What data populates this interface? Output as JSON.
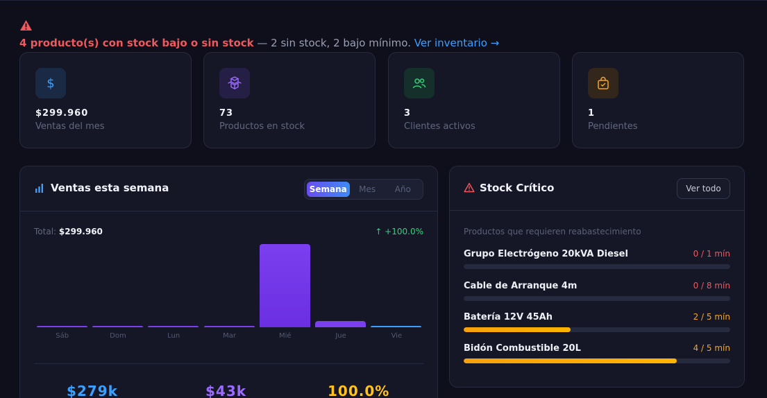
{
  "alert": {
    "strong": "4 producto(s) con stock bajo o sin stock",
    "detail": " — 2 sin stock, 2 bajo mínimo. ",
    "link": "Ver inventario →"
  },
  "stats": [
    {
      "value": "$299.960",
      "label": "Ventas del mes",
      "icon": "dollar-icon",
      "color": "#3aa0ff",
      "bg": "#1b2a44"
    },
    {
      "value": "73",
      "label": "Productos en stock",
      "icon": "cubes-icon",
      "color": "#9b6bff",
      "bg": "#251f45"
    },
    {
      "value": "3",
      "label": "Clientes activos",
      "icon": "users-icon",
      "color": "#34d17a",
      "bg": "#15302a"
    },
    {
      "value": "1",
      "label": "Pendientes",
      "icon": "shopping-bag-icon",
      "color": "#f5a623",
      "bg": "#33261a"
    }
  ],
  "sales": {
    "title": "Ventas esta semana",
    "tabs": [
      "Semana",
      "Mes",
      "Año"
    ],
    "active_tab": "Semana",
    "total_label": "Total: ",
    "total_value": "$299.960",
    "change": "↑ +100.0%",
    "summary": [
      {
        "value": "$279k",
        "color": "#3aa0ff"
      },
      {
        "value": "$43k",
        "color": "#9b6bff"
      },
      {
        "value": "100.0%",
        "color": "#ffc21a"
      }
    ]
  },
  "chart_data": {
    "type": "bar",
    "categories": [
      "Sáb",
      "Dom",
      "Lun",
      "Mar",
      "Mié",
      "Jue",
      "Vie"
    ],
    "values": [
      0,
      0,
      0,
      0,
      279000,
      20960,
      0
    ],
    "title": "Ventas esta semana",
    "ylim": [
      0,
      279000
    ],
    "grid": false
  },
  "stock": {
    "title": "Stock Crítico",
    "button": "Ver todo",
    "subtitle": "Productos que requieren reabastecimiento",
    "items": [
      {
        "name": "Grupo Electrógeno 20kVA Diesel",
        "qty": "0 / 1 mín",
        "level": 0,
        "color": "#f0585c"
      },
      {
        "name": "Cable de Arranque 4m",
        "qty": "0 / 8 mín",
        "level": 0,
        "color": "#f0585c"
      },
      {
        "name": "Batería 12V 45Ah",
        "qty": "2 / 5 mín",
        "level": 0.4,
        "color": "#f5a623"
      },
      {
        "name": "Bidón Combustible 20L",
        "qty": "4 / 5 mín",
        "level": 0.8,
        "color": "#f5a623"
      }
    ]
  }
}
